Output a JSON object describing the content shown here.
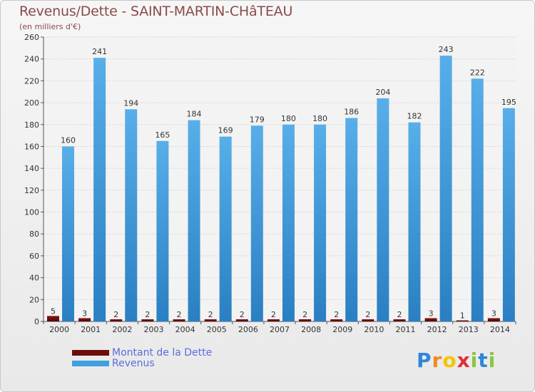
{
  "title": "Revenus/Dette - SAINT-MARTIN-CHâTEAU",
  "subtitle": "(en milliers d'€)",
  "logo_letters": [
    "P",
    "r",
    "o",
    "x",
    "i",
    "t",
    "i"
  ],
  "colors": {
    "dette": "#6b0d0d",
    "revenus": "#3f9fe0",
    "revenus_dark": "#2a7fc2",
    "grid": "#d6d6d6"
  },
  "legend": [
    {
      "label": "Montant de la Dette",
      "color": "#6b0d0d"
    },
    {
      "label": "Revenus",
      "color": "#3f9fe0"
    }
  ],
  "chart_data": {
    "type": "bar",
    "title": "Revenus/Dette - SAINT-MARTIN-CHâTEAU",
    "subtitle": "(en milliers d'€)",
    "categories": [
      "2000",
      "2001",
      "2002",
      "2003",
      "2004",
      "2005",
      "2006",
      "2007",
      "2008",
      "2009",
      "2010",
      "2011",
      "2012",
      "2013",
      "2014"
    ],
    "series": [
      {
        "name": "Montant de la Dette",
        "values": [
          5,
          3,
          2,
          2,
          2,
          2,
          2,
          2,
          2,
          2,
          2,
          2,
          3,
          1,
          3
        ]
      },
      {
        "name": "Revenus",
        "values": [
          160,
          241,
          194,
          165,
          184,
          169,
          179,
          180,
          180,
          186,
          204,
          182,
          243,
          222,
          195
        ]
      }
    ],
    "ylim": [
      0,
      260
    ],
    "yticks": [
      0,
      20,
      40,
      60,
      80,
      100,
      120,
      140,
      160,
      180,
      200,
      220,
      240,
      260
    ],
    "grid": true,
    "legend_position": "bottom-left"
  }
}
